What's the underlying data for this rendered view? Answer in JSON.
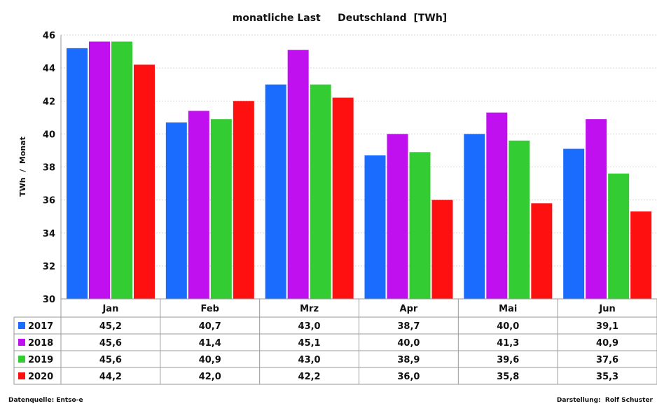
{
  "chart_data": {
    "type": "bar",
    "title": "monatliche Last     Deutschland  [TWh]",
    "ylabel": "TWh  /  Monat",
    "ylim": [
      30,
      46
    ],
    "yticks": [
      30,
      32,
      34,
      36,
      38,
      40,
      42,
      44,
      46
    ],
    "grid": true,
    "categories": [
      "Jan",
      "Feb",
      "Mrz",
      "Apr",
      "Mai",
      "Jun"
    ],
    "series": [
      {
        "name": "2017",
        "color": "#1a6cff",
        "values": [
          45.2,
          40.7,
          43.0,
          38.7,
          40.0,
          39.1
        ],
        "labels": [
          "45,2",
          "40,7",
          "43,0",
          "38,7",
          "40,0",
          "39,1"
        ]
      },
      {
        "name": "2018",
        "color": "#c010f0",
        "values": [
          45.6,
          41.4,
          45.1,
          40.0,
          41.3,
          40.9
        ],
        "labels": [
          "45,6",
          "41,4",
          "45,1",
          "40,0",
          "41,3",
          "40,9"
        ]
      },
      {
        "name": "2019",
        "color": "#33cc33",
        "values": [
          45.6,
          40.9,
          43.0,
          38.9,
          39.6,
          37.6
        ],
        "labels": [
          "45,6",
          "40,9",
          "43,0",
          "38,9",
          "39,6",
          "37,6"
        ]
      },
      {
        "name": "2020",
        "color": "#ff1010",
        "values": [
          44.2,
          42.0,
          42.2,
          36.0,
          35.8,
          35.3
        ],
        "labels": [
          "44,2",
          "42,0",
          "42,2",
          "36,0",
          "35,8",
          "35,3"
        ]
      }
    ],
    "legend": "data-table-left"
  },
  "footer": {
    "source": "Datenquelle: Entso-e",
    "credit": "Darstellung:  Rolf Schuster"
  }
}
